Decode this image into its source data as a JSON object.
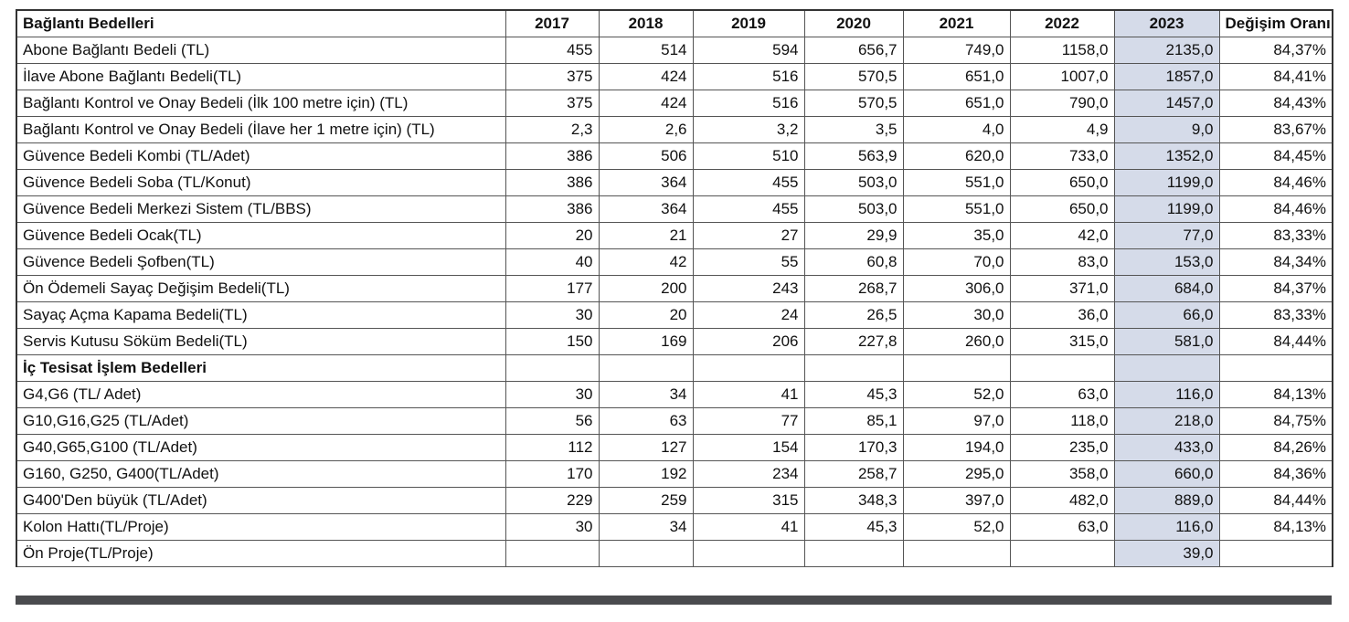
{
  "table": {
    "headers": [
      "Bağlantı Bedelleri",
      "2017",
      "2018",
      "2019",
      "2020",
      "2021",
      "2022",
      "2023",
      "Değişim Oranı"
    ],
    "rows": [
      {
        "label": "Abone Bağlantı Bedeli (TL)",
        "cells": [
          "455",
          "514",
          "594",
          "656,7",
          "749,0",
          "1158,0",
          "2135,0",
          "84,37%"
        ]
      },
      {
        "label": "İlave Abone Bağlantı Bedeli(TL)",
        "cells": [
          "375",
          "424",
          "516",
          "570,5",
          "651,0",
          "1007,0",
          "1857,0",
          "84,41%"
        ]
      },
      {
        "label": "Bağlantı Kontrol ve Onay Bedeli (İlk 100 metre için) (TL)",
        "cells": [
          "375",
          "424",
          "516",
          "570,5",
          "651,0",
          "790,0",
          "1457,0",
          "84,43%"
        ]
      },
      {
        "label": "Bağlantı Kontrol ve Onay Bedeli (İlave her 1 metre için) (TL)",
        "cells": [
          "2,3",
          "2,6",
          "3,2",
          "3,5",
          "4,0",
          "4,9",
          "9,0",
          "83,67%"
        ]
      },
      {
        "label": "Güvence Bedeli Kombi (TL/Adet)",
        "cells": [
          "386",
          "506",
          "510",
          "563,9",
          "620,0",
          "733,0",
          "1352,0",
          "84,45%"
        ]
      },
      {
        "label": "Güvence Bedeli Soba (TL/Konut)",
        "cells": [
          "386",
          "364",
          "455",
          "503,0",
          "551,0",
          "650,0",
          "1199,0",
          "84,46%"
        ]
      },
      {
        "label": "Güvence Bedeli Merkezi Sistem (TL/BBS)",
        "cells": [
          "386",
          "364",
          "455",
          "503,0",
          "551,0",
          "650,0",
          "1199,0",
          "84,46%"
        ]
      },
      {
        "label": "Güvence Bedeli Ocak(TL)",
        "cells": [
          "20",
          "21",
          "27",
          "29,9",
          "35,0",
          "42,0",
          "77,0",
          "83,33%"
        ]
      },
      {
        "label": "Güvence Bedeli Şofben(TL)",
        "cells": [
          "40",
          "42",
          "55",
          "60,8",
          "70,0",
          "83,0",
          "153,0",
          "84,34%"
        ]
      },
      {
        "label": "Ön Ödemeli Sayaç Değişim Bedeli(TL)",
        "cells": [
          "177",
          "200",
          "243",
          "268,7",
          "306,0",
          "371,0",
          "684,0",
          "84,37%"
        ]
      },
      {
        "label": "Sayaç Açma Kapama Bedeli(TL)",
        "cells": [
          "30",
          "20",
          "24",
          "26,5",
          "30,0",
          "36,0",
          "66,0",
          "83,33%"
        ]
      },
      {
        "label": "Servis Kutusu Söküm Bedeli(TL)",
        "cells": [
          "150",
          "169",
          "206",
          "227,8",
          "260,0",
          "315,0",
          "581,0",
          "84,44%"
        ]
      },
      {
        "label": "İç Tesisat İşlem Bedelleri",
        "section": true,
        "cells": [
          "",
          "",
          "",
          "",
          "",
          "",
          "",
          ""
        ]
      },
      {
        "label": "G4,G6 (TL/ Adet)",
        "cells": [
          "30",
          "34",
          "41",
          "45,3",
          "52,0",
          "63,0",
          "116,0",
          "84,13%"
        ]
      },
      {
        "label": "G10,G16,G25 (TL/Adet)",
        "cells": [
          "56",
          "63",
          "77",
          "85,1",
          "97,0",
          "118,0",
          "218,0",
          "84,75%"
        ]
      },
      {
        "label": "G40,G65,G100 (TL/Adet)",
        "cells": [
          "112",
          "127",
          "154",
          "170,3",
          "194,0",
          "235,0",
          "433,0",
          "84,26%"
        ]
      },
      {
        "label": "G160, G250, G400(TL/Adet)",
        "cells": [
          "170",
          "192",
          "234",
          "258,7",
          "295,0",
          "358,0",
          "660,0",
          "84,36%"
        ]
      },
      {
        "label": "G400'Den büyük (TL/Adet)",
        "cells": [
          "229",
          "259",
          "315",
          "348,3",
          "397,0",
          "482,0",
          "889,0",
          "84,44%"
        ]
      },
      {
        "label": "Kolon Hattı(TL/Proje)",
        "cells": [
          "30",
          "34",
          "41",
          "45,3",
          "52,0",
          "63,0",
          "116,0",
          "84,13%"
        ]
      },
      {
        "label": "Ön Proje(TL/Proje)",
        "cells": [
          "",
          "",
          "",
          "",
          "",
          "",
          "39,0",
          ""
        ]
      }
    ],
    "highlight_color": "#d5dbe9"
  }
}
